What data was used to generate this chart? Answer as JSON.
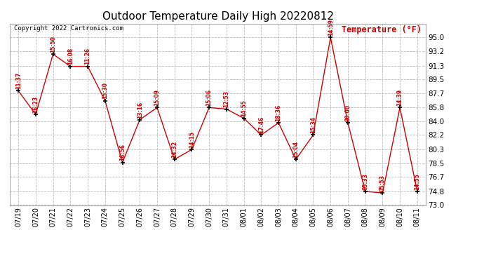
{
  "title": "Outdoor Temperature Daily High 20220812",
  "copyright": "Copyright 2022 Cartronics.com",
  "ylabel": "Temperature (°F)",
  "background_color": "#ffffff",
  "line_color": "#cc0000",
  "marker_color": "#000000",
  "grid_color": "#bbbbbb",
  "text_color": "#cc0000",
  "dates": [
    "07/19",
    "07/20",
    "07/21",
    "07/22",
    "07/23",
    "07/24",
    "07/25",
    "07/26",
    "07/27",
    "07/28",
    "07/29",
    "07/30",
    "07/31",
    "08/01",
    "08/02",
    "08/03",
    "08/04",
    "08/05",
    "08/06",
    "08/07",
    "08/08",
    "08/09",
    "08/10",
    "08/11"
  ],
  "values": [
    88.0,
    84.9,
    92.8,
    91.2,
    91.2,
    86.7,
    78.6,
    84.2,
    85.8,
    79.0,
    80.3,
    85.8,
    85.6,
    84.4,
    82.2,
    83.8,
    79.0,
    82.2,
    95.0,
    83.8,
    74.8,
    74.6,
    85.8,
    74.8
  ],
  "time_labels": [
    "11:37",
    "16:23",
    "15:50",
    "16:08",
    "11:26",
    "15:30",
    "16:56",
    "13:16",
    "15:09",
    "14:32",
    "14:15",
    "15:06",
    "12:53",
    "14:55",
    "17:46",
    "18:36",
    "15:04",
    "15:34",
    "14:59",
    "00:00",
    "05:33",
    "05:53",
    "14:39",
    "14:55"
  ],
  "ylim": [
    73.0,
    96.8
  ],
  "yticks": [
    73.0,
    74.8,
    76.7,
    78.5,
    80.3,
    82.2,
    84.0,
    85.8,
    87.7,
    89.5,
    91.3,
    93.2,
    95.0
  ]
}
